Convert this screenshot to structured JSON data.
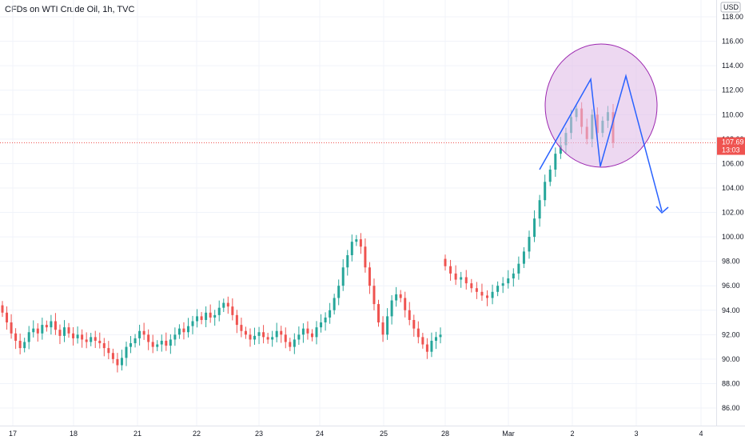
{
  "header": {
    "title": "CFDs on WTI Crude Oil, 1h, TVC"
  },
  "price_axis": {
    "currency": "USD",
    "ticks": [
      "118.00",
      "116.00",
      "114.00",
      "112.00",
      "110.00",
      "108.00",
      "106.00",
      "104.00",
      "102.00",
      "100.00",
      "98.00",
      "96.00",
      "94.00",
      "92.00",
      "90.00",
      "88.00",
      "86.00"
    ],
    "last_price_label": "107.69",
    "countdown_label": "13:03"
  },
  "time_axis": {
    "ticks": [
      "17",
      "18",
      "21",
      "22",
      "23",
      "24",
      "25",
      "28",
      "Mar",
      "2",
      "3",
      "4"
    ]
  },
  "colors": {
    "up": "#26a69a",
    "down": "#ef5350",
    "drawing": "#2962ff",
    "highlight_fill": "#e1bee7",
    "highlight_stroke": "#9c27b0",
    "last_price": "#ef5350",
    "grid": "#f0f3fa"
  },
  "chart_data": {
    "type": "candlestick",
    "symbol": "CFDs on WTI Crude Oil",
    "interval": "1h",
    "source": "TVC",
    "ylim": [
      85,
      119
    ],
    "last_price": 107.69,
    "x_ticks": [
      "17",
      "18",
      "21",
      "22",
      "23",
      "24",
      "25",
      "28",
      "Mar",
      "2",
      "3",
      "4"
    ],
    "series": [
      {
        "values": [
          93.8,
          93.0,
          92.1,
          91.5,
          90.9,
          91.4,
          92.2,
          92.5,
          92.1,
          92.8,
          92.6,
          93.1,
          92.4,
          91.9,
          92.6,
          92.1,
          91.7,
          92.0,
          91.6,
          91.4,
          91.8,
          91.5,
          91.3,
          90.9,
          90.5,
          90.0,
          89.5,
          90.1,
          91.0,
          91.3,
          91.7,
          92.3,
          92.0,
          91.4,
          91.0,
          91.2,
          91.5,
          91.1,
          91.6,
          92.0,
          92.5,
          92.2,
          92.7,
          93.1,
          93.5,
          93.2,
          93.8,
          93.4,
          93.6,
          94.2,
          94.6,
          94.3,
          93.6,
          92.8,
          92.3,
          92.0,
          91.6,
          91.9,
          92.2,
          91.8,
          91.6,
          91.8,
          92.3,
          92.0,
          91.4,
          91.0,
          91.6,
          92.0,
          92.5,
          92.1,
          91.8,
          92.6,
          93.0,
          93.4,
          94.0,
          95.0,
          96.0,
          97.5,
          98.5,
          99.6,
          99.8,
          99.2,
          97.5,
          96.0,
          94.5,
          93.0,
          92.0,
          93.5,
          94.8,
          95.3,
          95.0,
          94.0,
          93.2,
          92.5,
          91.8,
          91.2,
          90.6,
          91.5,
          91.8,
          92.0,
          97.6,
          97.0,
          96.5,
          96.7,
          96.2,
          95.8,
          95.5,
          95.2,
          95.0,
          95.5,
          96.0,
          96.2,
          96.6,
          97.0,
          97.8,
          98.8,
          100.0,
          101.5,
          103.0,
          104.5,
          105.5,
          106.8,
          107.5,
          108.5,
          109.8,
          110.5,
          109.0,
          108.0,
          110.0,
          108.5,
          109.5,
          110.2,
          107.7
        ]
      }
    ],
    "annotations": [
      {
        "type": "ellipse-highlight",
        "label": ""
      },
      {
        "type": "polyline-projection",
        "label": ""
      }
    ]
  }
}
